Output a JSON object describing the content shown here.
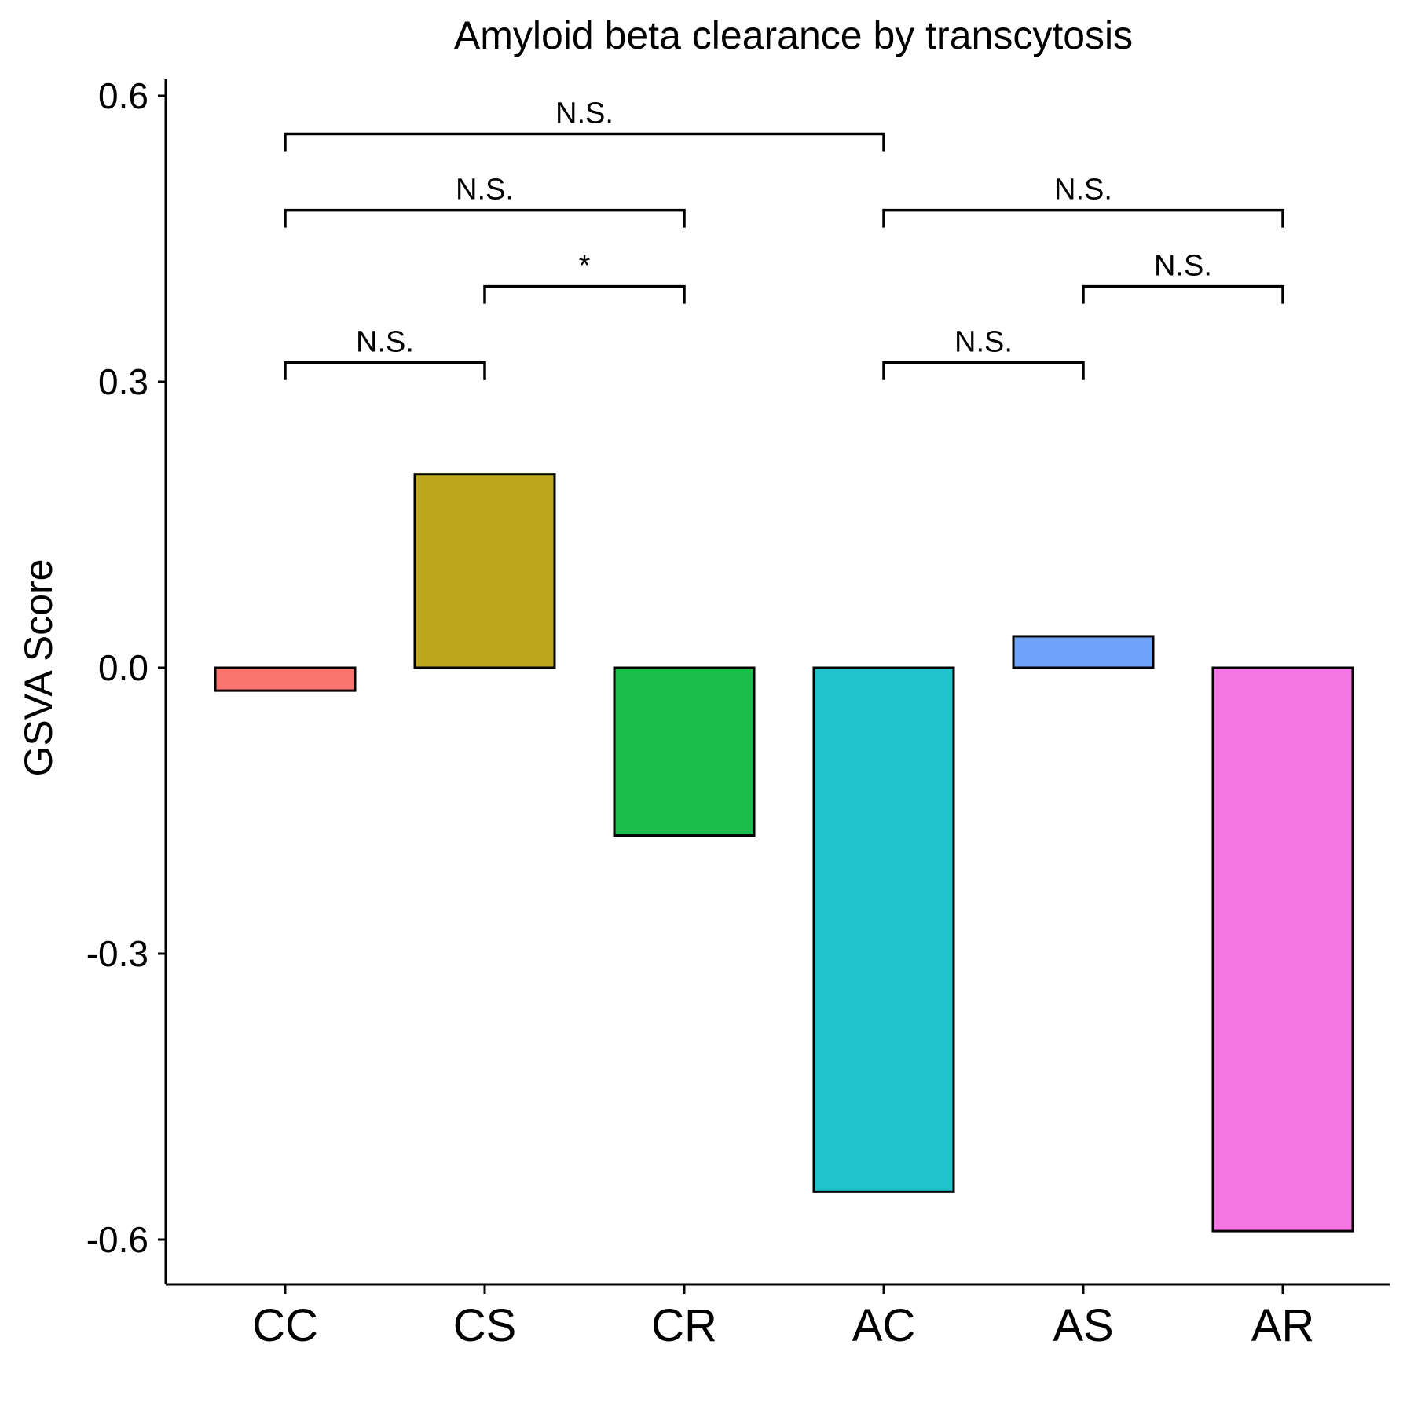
{
  "chart_data": {
    "type": "bar",
    "title": "Amyloid beta clearance by transcytosis",
    "xlabel": "",
    "ylabel": "GSVA Score",
    "ylim": [
      -0.66,
      0.62
    ],
    "yticks": [
      0.6,
      0.3,
      0.0,
      -0.3,
      -0.6
    ],
    "ytick_labels": [
      "0.6",
      "0.3",
      "0.0",
      "-0.3",
      "-0.6"
    ],
    "categories": [
      "CC",
      "CS",
      "CR",
      "AC",
      "AS",
      "AR"
    ],
    "values": [
      -0.024,
      0.203,
      -0.176,
      -0.55,
      0.033,
      -0.591
    ],
    "colors": [
      "#F8766D",
      "#BDA71A",
      "#1BBE4A",
      "#1EC4C9",
      "#6FA4FA",
      "#F476E2"
    ],
    "grid": false,
    "legend": "none",
    "comparisons": [
      {
        "from": "CC",
        "to": "CS",
        "label": "N.S.",
        "y": 0.32
      },
      {
        "from": "CS",
        "to": "CR",
        "label": "*",
        "y": 0.4
      },
      {
        "from": "CC",
        "to": "CR",
        "label": "N.S.",
        "y": 0.48
      },
      {
        "from": "CC",
        "to": "AC",
        "label": "N.S.",
        "y": 0.56
      },
      {
        "from": "AC",
        "to": "AS",
        "label": "N.S.",
        "y": 0.32
      },
      {
        "from": "AS",
        "to": "AR",
        "label": "N.S.",
        "y": 0.4
      },
      {
        "from": "AC",
        "to": "AR",
        "label": "N.S.",
        "y": 0.48
      }
    ]
  }
}
